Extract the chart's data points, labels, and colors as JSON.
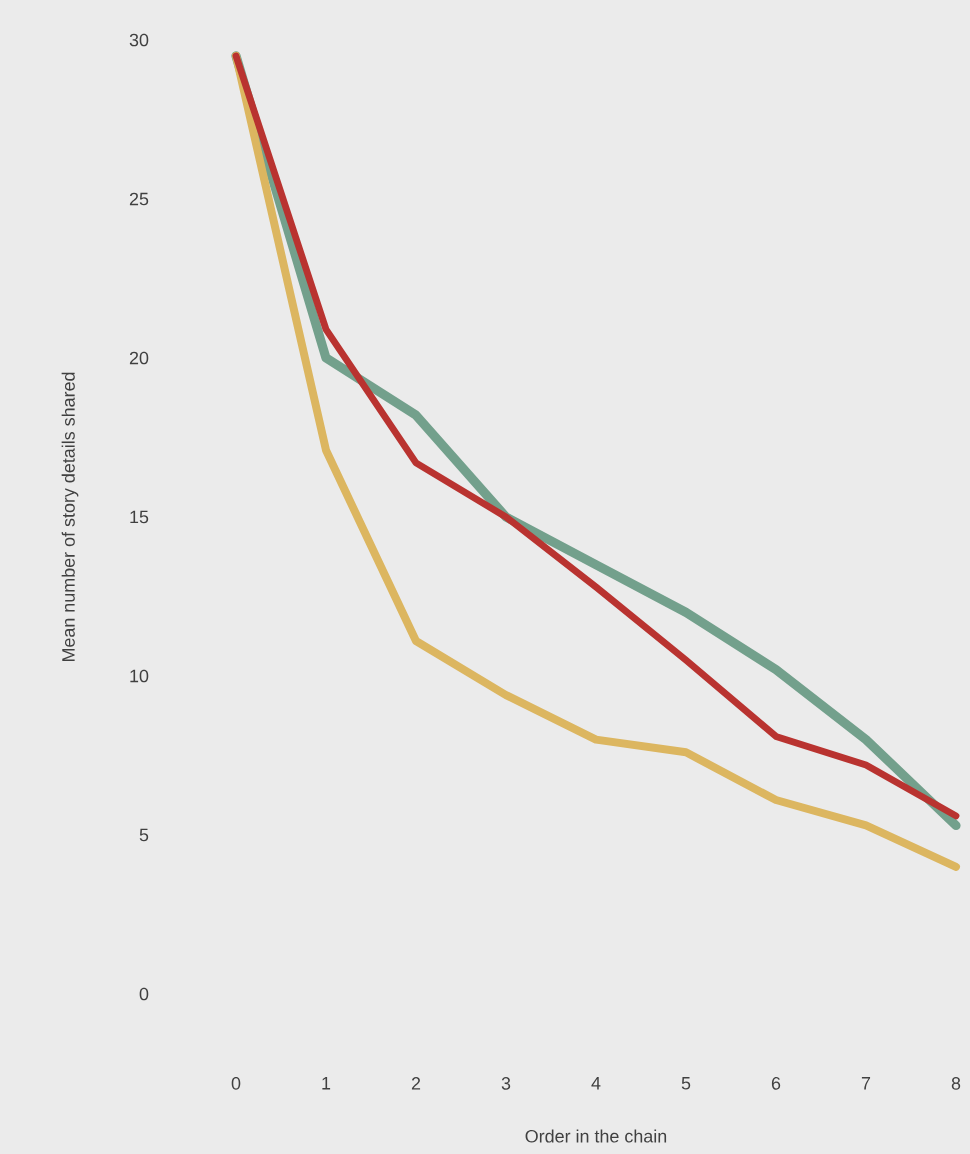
{
  "chart_data": {
    "type": "line",
    "xlabel": "Order in the chain",
    "ylabel": "Mean number of story details shared",
    "x": [
      0,
      1,
      2,
      3,
      4,
      5,
      6,
      7,
      8
    ],
    "xlim": [
      0,
      8
    ],
    "xticks": [
      0,
      1,
      2,
      3,
      4,
      5,
      6,
      7,
      8
    ],
    "ylim": [
      0,
      30
    ],
    "yticks": [
      0,
      5,
      10,
      15,
      20,
      25,
      30
    ],
    "grid": false,
    "marker": "none",
    "line_style": "solid",
    "series": [
      {
        "color": "#73a08c",
        "values": [
          29.5,
          20,
          18.2,
          15,
          13.5,
          12,
          10.2,
          8,
          5.3
        ]
      },
      {
        "color": "#dcb660",
        "values": [
          29.5,
          17.1,
          11.1,
          9.4,
          8,
          7.6,
          6.1,
          5.3,
          4
        ]
      },
      {
        "color": "#b93330",
        "values": [
          29.5,
          20.9,
          16.7,
          15,
          12.8,
          10.5,
          8.1,
          7.2,
          5.6
        ]
      }
    ]
  }
}
